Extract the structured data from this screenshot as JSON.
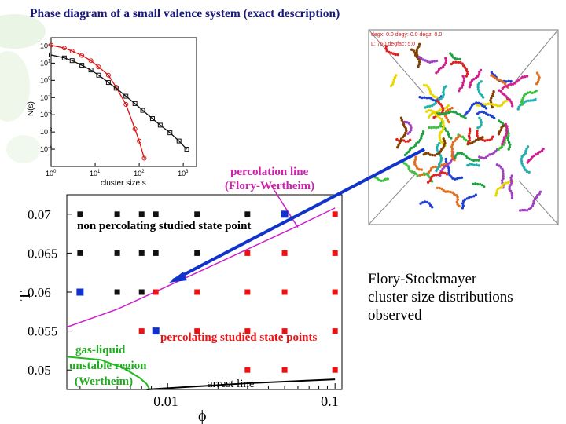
{
  "slide": {
    "title": "Phase diagram of a small valence system (exact description)",
    "right_caption": [
      "Flory-Stockmayer",
      "cluster size distributions",
      "observed"
    ]
  },
  "colors": {
    "title": "#1a1a7a",
    "nonpercolating_marker": "#111111",
    "percolating_marker": "#ee1111",
    "highlighted_marker": "#1133cc",
    "percolation_line": "#cc22cc",
    "spinodal_line": "#22bb22",
    "arrest_line": "#000000",
    "arrow": "#1133cc",
    "annotation_magenta": "#cc22aa",
    "annotation_green": "#22aa22",
    "annotation_red": "#ee1111"
  },
  "simulation_snapshot": {
    "labels": [
      "degx: 0.0  degy: 0.0  degz: 0.0",
      "L: 750  degfac: 5.0"
    ]
  },
  "chart_data": [
    {
      "type": "line",
      "title": "",
      "xlabel": "cluster size s",
      "ylabel": "N(s)",
      "x_scale": "log",
      "y_scale": "log",
      "xlim": [
        1,
        2000
      ],
      "ylim": [
        1e-05,
        300
      ],
      "x_tick_labels": [
        "10^0",
        "10^1",
        "10^2",
        "10^3"
      ],
      "y_tick_labels": [
        "10^2",
        "10^1",
        "10^0",
        "10^-1",
        "10^-2",
        "10^-3",
        "10^-4"
      ],
      "series": [
        {
          "marker": "circle",
          "color": "#dd1111",
          "x": [
            1,
            2,
            3,
            5,
            8,
            12,
            20,
            30,
            50,
            80,
            100,
            130
          ],
          "y": [
            110,
            75,
            50,
            28,
            14,
            6,
            2,
            0.4,
            0.04,
            0.0015,
            0.0003,
            3e-05
          ]
        },
        {
          "marker": "square",
          "color": "#111111",
          "x": [
            1,
            2,
            3,
            5,
            8,
            12,
            20,
            30,
            50,
            80,
            120,
            200,
            300,
            500,
            800,
            1200
          ],
          "y": [
            30,
            20,
            14,
            7.5,
            4,
            2,
            0.75,
            0.35,
            0.12,
            0.045,
            0.018,
            0.006,
            0.0025,
            0.0009,
            0.0003,
            0.0001
          ]
        }
      ]
    },
    {
      "type": "scatter",
      "title": "",
      "xlabel": "ϕ",
      "ylabel": "T",
      "x_scale": "log",
      "xlim": [
        0.0025,
        0.11
      ],
      "ylim": [
        0.0475,
        0.0725
      ],
      "x_tick_labels": [
        "0.01",
        "0.1"
      ],
      "y_tick_labels": [
        "0.07",
        "0.065",
        "0.06",
        "0.055",
        "0.05"
      ],
      "point_groups": [
        {
          "state": "non percolating",
          "color": "#111111",
          "points": [
            [
              0.003,
              0.07
            ],
            [
              0.005,
              0.07
            ],
            [
              0.007,
              0.07
            ],
            [
              0.0085,
              0.07
            ],
            [
              0.015,
              0.07
            ],
            [
              0.03,
              0.07
            ],
            [
              0.003,
              0.065
            ],
            [
              0.005,
              0.065
            ],
            [
              0.007,
              0.065
            ],
            [
              0.0085,
              0.065
            ],
            [
              0.015,
              0.065
            ],
            [
              0.005,
              0.06
            ],
            [
              0.007,
              0.06
            ]
          ]
        },
        {
          "state": "percolating",
          "color": "#ee1111",
          "points": [
            [
              0.1,
              0.07
            ],
            [
              0.03,
              0.065
            ],
            [
              0.05,
              0.065
            ],
            [
              0.1,
              0.065
            ],
            [
              0.0085,
              0.06
            ],
            [
              0.015,
              0.06
            ],
            [
              0.03,
              0.06
            ],
            [
              0.05,
              0.06
            ],
            [
              0.1,
              0.06
            ],
            [
              0.007,
              0.055
            ],
            [
              0.015,
              0.055
            ],
            [
              0.03,
              0.055
            ],
            [
              0.05,
              0.055
            ],
            [
              0.1,
              0.055
            ],
            [
              0.03,
              0.05
            ],
            [
              0.05,
              0.05
            ],
            [
              0.1,
              0.05
            ]
          ]
        },
        {
          "state": "highlighted",
          "color": "#1133cc",
          "points": [
            [
              0.05,
              0.07
            ],
            [
              0.003,
              0.06
            ],
            [
              0.0085,
              0.055
            ]
          ]
        }
      ],
      "lines": [
        {
          "name": "percolation line (Flory-Wertheim)",
          "color": "#cc22cc",
          "x": [
            0.0025,
            0.005,
            0.008,
            0.015,
            0.03,
            0.06,
            0.1
          ],
          "y": [
            0.0555,
            0.0578,
            0.0598,
            0.0625,
            0.0655,
            0.0685,
            0.0708
          ]
        },
        {
          "name": "gas-liquid unstable region (Wertheim)",
          "color": "#22bb22",
          "x": [
            0.0025,
            0.004,
            0.0055,
            0.0068,
            0.0075,
            0.0078
          ],
          "y": [
            0.0517,
            0.0513,
            0.0502,
            0.049,
            0.0482,
            0.0475
          ]
        },
        {
          "name": "arrest line",
          "color": "#000000",
          "x": [
            0.0075,
            0.03,
            0.1
          ],
          "y": [
            0.0475,
            0.0483,
            0.0488
          ]
        }
      ],
      "annotations": [
        {
          "text": "percolation line",
          "color": "#cc22aa"
        },
        {
          "text": "(Flory-Wertheim)",
          "color": "#cc22aa"
        },
        {
          "text": "non percolating  studied state point",
          "color": "#000000"
        },
        {
          "text": "percolating studied state points",
          "color": "#ee1111"
        },
        {
          "text": "gas-liquid",
          "color": "#22aa22"
        },
        {
          "text": "unstable region",
          "color": "#22aa22"
        },
        {
          "text": "(Wertheim)",
          "color": "#22aa22"
        },
        {
          "text": "arrest line",
          "color": "#000000"
        }
      ]
    }
  ]
}
